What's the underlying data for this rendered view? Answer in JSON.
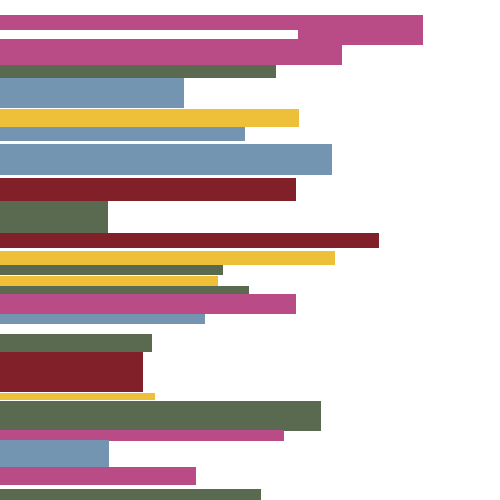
{
  "palette": {
    "background": "#ffffff",
    "magenta": "#b94c86",
    "green": "#5a6a50",
    "blue": "#7395b1",
    "yellow": "#eebf38",
    "maroon": "#812029"
  },
  "bars": [
    {
      "color": "magenta"
    },
    {
      "color": "magenta"
    },
    {
      "color": "green"
    },
    {
      "color": "blue"
    },
    {
      "color": "yellow"
    },
    {
      "color": "blue"
    },
    {
      "color": "blue"
    },
    {
      "color": "maroon"
    },
    {
      "color": "green"
    },
    {
      "color": "maroon"
    },
    {
      "color": "yellow"
    },
    {
      "color": "green"
    },
    {
      "color": "yellow"
    },
    {
      "color": "green"
    },
    {
      "color": "magenta"
    },
    {
      "color": "blue"
    },
    {
      "color": "green"
    },
    {
      "color": "maroon"
    },
    {
      "color": "yellow"
    },
    {
      "color": "green"
    },
    {
      "color": "magenta"
    },
    {
      "color": "blue"
    },
    {
      "color": "magenta"
    },
    {
      "color": "green"
    }
  ]
}
